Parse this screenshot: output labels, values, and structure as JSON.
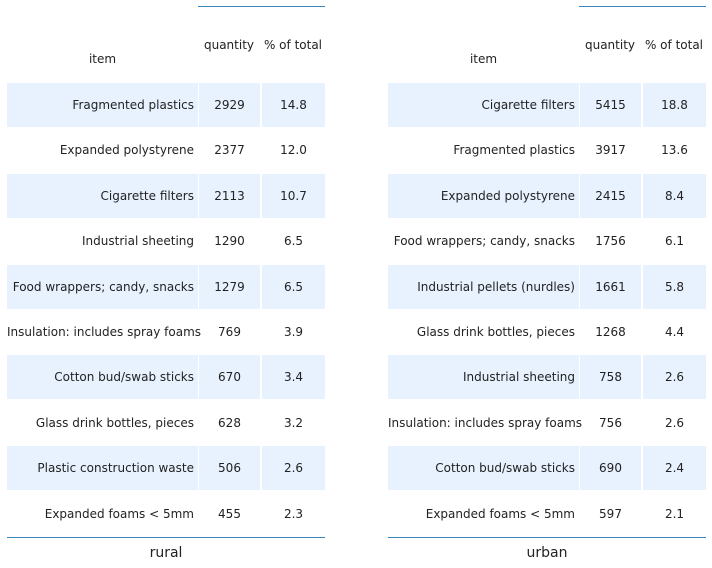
{
  "chart_data": [
    {
      "type": "table",
      "title": "rural",
      "columns": [
        "item",
        "quantity",
        "% of total"
      ],
      "rows": [
        {
          "item": "Fragmented plastics",
          "quantity": 2929,
          "pct": "14.8"
        },
        {
          "item": "Expanded polystyrene",
          "quantity": 2377,
          "pct": "12.0"
        },
        {
          "item": "Cigarette filters",
          "quantity": 2113,
          "pct": "10.7"
        },
        {
          "item": "Industrial sheeting",
          "quantity": 1290,
          "pct": "6.5"
        },
        {
          "item": "Food wrappers; candy, snacks",
          "quantity": 1279,
          "pct": "6.5"
        },
        {
          "item": "Insulation: includes spray foams",
          "quantity": 769,
          "pct": "3.9"
        },
        {
          "item": "Cotton bud/swab sticks",
          "quantity": 670,
          "pct": "3.4"
        },
        {
          "item": "Glass drink bottles, pieces",
          "quantity": 628,
          "pct": "3.2"
        },
        {
          "item": "Plastic construction waste",
          "quantity": 506,
          "pct": "2.6"
        },
        {
          "item": "Expanded foams < 5mm",
          "quantity": 455,
          "pct": "2.3"
        }
      ]
    },
    {
      "type": "table",
      "title": "urban",
      "columns": [
        "item",
        "quantity",
        "% of total"
      ],
      "rows": [
        {
          "item": "Cigarette filters",
          "quantity": 5415,
          "pct": "18.8"
        },
        {
          "item": "Fragmented plastics",
          "quantity": 3917,
          "pct": "13.6"
        },
        {
          "item": "Expanded polystyrene",
          "quantity": 2415,
          "pct": "8.4"
        },
        {
          "item": "Food wrappers; candy, snacks",
          "quantity": 1756,
          "pct": "6.1"
        },
        {
          "item": "Industrial pellets (nurdles)",
          "quantity": 1661,
          "pct": "5.8"
        },
        {
          "item": "Glass drink bottles, pieces",
          "quantity": 1268,
          "pct": "4.4"
        },
        {
          "item": "Industrial sheeting",
          "quantity": 758,
          "pct": "2.6"
        },
        {
          "item": "Insulation: includes spray foams",
          "quantity": 756,
          "pct": "2.6"
        },
        {
          "item": "Cotton bud/swab sticks",
          "quantity": 690,
          "pct": "2.4"
        },
        {
          "item": "Expanded foams < 5mm",
          "quantity": 597,
          "pct": "2.1"
        }
      ]
    }
  ],
  "colors": {
    "shade": "#e8f2ff",
    "rule": "#3a86b8",
    "text": "#222222"
  }
}
